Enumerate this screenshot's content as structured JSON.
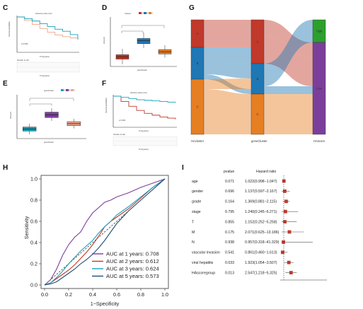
{
  "panels": {
    "C": "C",
    "D": "D",
    "E": "E",
    "F": "F",
    "G": "G",
    "H": "H",
    "I": "I"
  },
  "colors": {
    "red": "#c0392b",
    "blue": "#1f77b4",
    "orange": "#e67e22",
    "purple": "#7b3f9b",
    "teal": "#17a2b8",
    "salmon": "#f0a58a",
    "green": "#2ca02c",
    "gray": "#6d6d6d"
  },
  "chart_data": [
    {
      "panel": "C",
      "type": "line",
      "title": "HAscore probe (mtr)",
      "pvalue": "p=0.005",
      "table_title": "Number at risk",
      "series": [
        {
          "name": "high",
          "values": [
            1,
            0.9,
            0.78,
            0.66,
            0.55,
            0.47,
            0.42,
            0.38,
            0.32
          ]
        },
        {
          "name": "low",
          "values": [
            1,
            0.95,
            0.88,
            0.8,
            0.72,
            0.64,
            0.58,
            0.48,
            0.35
          ]
        }
      ],
      "x": [
        0,
        1,
        2,
        3,
        4,
        5,
        6,
        7,
        8
      ],
      "xlabel": "Time(years)",
      "ylabel": "Survival probability"
    },
    {
      "panel": "D",
      "type": "box",
      "legend_title": "clusters",
      "legend": [
        "A",
        "B",
        "C"
      ],
      "xlabel": "geneCluster",
      "ylabel": "HAscore",
      "categories": [
        "A",
        "B",
        "C"
      ],
      "series": [
        {
          "name": "A",
          "median": -0.9,
          "q1": -1.2,
          "q3": -0.6,
          "min": -1.9,
          "max": 0.2
        },
        {
          "name": "B",
          "median": 1.3,
          "q1": 0.9,
          "q3": 1.6,
          "min": 0.3,
          "max": 2.4
        },
        {
          "name": "C",
          "median": -0.2,
          "q1": -0.5,
          "q3": 0.1,
          "min": -1.0,
          "max": 0.7
        }
      ]
    },
    {
      "panel": "E",
      "type": "box",
      "legend_title": "geneCluster",
      "legend": [
        "A",
        "B",
        "C"
      ],
      "xlabel": "geneCluster",
      "ylabel": "HAscore",
      "categories": [
        "A",
        "B",
        "C"
      ],
      "series": [
        {
          "name": "A",
          "median": -0.8,
          "q1": -1.1,
          "q3": -0.5,
          "min": -1.6,
          "max": 0.0
        },
        {
          "name": "B",
          "median": 1.3,
          "q1": 0.9,
          "q3": 1.7,
          "min": 0.4,
          "max": 2.3
        },
        {
          "name": "C",
          "median": 0.0,
          "q1": -0.3,
          "q3": 0.3,
          "min": -0.7,
          "max": 0.7
        }
      ]
    },
    {
      "panel": "F",
      "type": "line",
      "title": "HAscore status (mtr)",
      "pvalue": "p<0.001",
      "table_title": "Number at risk",
      "series": [
        {
          "name": "high",
          "values": [
            1,
            0.82,
            0.66,
            0.52,
            0.42,
            0.36,
            0.3,
            0.26,
            0.22
          ]
        },
        {
          "name": "low",
          "values": [
            1,
            0.96,
            0.92,
            0.88,
            0.86,
            0.84,
            0.82,
            0.8,
            0.78
          ]
        }
      ],
      "x": [
        0,
        1,
        2,
        3,
        4,
        5,
        6,
        7,
        8
      ],
      "xlabel": "Time(years)",
      "ylabel": "Survival probability"
    },
    {
      "panel": "G",
      "type": "sankey",
      "axes": [
        "HAcluster",
        "geneCluster",
        "HAscore"
      ],
      "left": [
        "A",
        "B",
        "C"
      ],
      "middle": [
        "A",
        "B",
        "C"
      ],
      "right": [
        "High",
        "Low"
      ]
    },
    {
      "panel": "H",
      "type": "line",
      "xlabel": "1−Specificity",
      "ylabel": "Sensitivity",
      "xlim": [
        0,
        1
      ],
      "ylim": [
        0,
        1
      ],
      "ticks": [
        "0.0",
        "0.2",
        "0.4",
        "0.6",
        "0.8",
        "1.0"
      ],
      "series": [
        {
          "name": "AUC at 1 years: 0.708",
          "color": "#7b3f9b",
          "points": [
            [
              0,
              0
            ],
            [
              0.05,
              0.05
            ],
            [
              0.1,
              0.15
            ],
            [
              0.15,
              0.28
            ],
            [
              0.2,
              0.38
            ],
            [
              0.25,
              0.45
            ],
            [
              0.3,
              0.5
            ],
            [
              0.35,
              0.6
            ],
            [
              0.4,
              0.68
            ],
            [
              0.45,
              0.73
            ],
            [
              0.5,
              0.78
            ],
            [
              0.55,
              0.8
            ],
            [
              0.6,
              0.83
            ],
            [
              0.7,
              0.87
            ],
            [
              0.8,
              0.92
            ],
            [
              0.9,
              0.96
            ],
            [
              1,
              1
            ]
          ]
        },
        {
          "name": "AUC at 2 years: 0.612",
          "color": "#c0392b",
          "points": [
            [
              0,
              0
            ],
            [
              0.05,
              0.02
            ],
            [
              0.1,
              0.06
            ],
            [
              0.15,
              0.1
            ],
            [
              0.2,
              0.14
            ],
            [
              0.25,
              0.19
            ],
            [
              0.3,
              0.25
            ],
            [
              0.35,
              0.31
            ],
            [
              0.4,
              0.38
            ],
            [
              0.45,
              0.46
            ],
            [
              0.5,
              0.55
            ],
            [
              0.55,
              0.6
            ],
            [
              0.6,
              0.64
            ],
            [
              0.7,
              0.72
            ],
            [
              0.8,
              0.82
            ],
            [
              0.9,
              0.92
            ],
            [
              1,
              1
            ]
          ]
        },
        {
          "name": "AUC at 3 years: 0.624",
          "color": "#17a2b8",
          "points": [
            [
              0,
              0
            ],
            [
              0.05,
              0.02
            ],
            [
              0.1,
              0.07
            ],
            [
              0.15,
              0.13
            ],
            [
              0.2,
              0.2
            ],
            [
              0.25,
              0.26
            ],
            [
              0.3,
              0.32
            ],
            [
              0.35,
              0.37
            ],
            [
              0.4,
              0.42
            ],
            [
              0.45,
              0.49
            ],
            [
              0.5,
              0.55
            ],
            [
              0.55,
              0.6
            ],
            [
              0.6,
              0.66
            ],
            [
              0.7,
              0.74
            ],
            [
              0.8,
              0.83
            ],
            [
              0.9,
              0.92
            ],
            [
              1,
              1
            ]
          ]
        },
        {
          "name": "AUC at 5 years: 0.573",
          "color": "#1f4e79",
          "points": [
            [
              0,
              0
            ],
            [
              0.05,
              0.01
            ],
            [
              0.1,
              0.03
            ],
            [
              0.15,
              0.07
            ],
            [
              0.2,
              0.11
            ],
            [
              0.25,
              0.15
            ],
            [
              0.3,
              0.2
            ],
            [
              0.35,
              0.24
            ],
            [
              0.4,
              0.29
            ],
            [
              0.45,
              0.35
            ],
            [
              0.5,
              0.42
            ],
            [
              0.55,
              0.5
            ],
            [
              0.6,
              0.58
            ],
            [
              0.7,
              0.7
            ],
            [
              0.8,
              0.8
            ],
            [
              0.9,
              0.9
            ],
            [
              1,
              1
            ]
          ]
        }
      ]
    },
    {
      "panel": "I",
      "type": "forest",
      "col_pvalue": "pvalue",
      "col_hr": "Hazard ratio",
      "rows": [
        {
          "name": "age",
          "p": "0.071",
          "hr": "1.022(0.998−1.047)",
          "est": 1.022,
          "lo": 0.998,
          "hi": 1.047
        },
        {
          "name": "gender",
          "p": "0.696",
          "hr": "1.137(0.597−2.167)",
          "est": 1.137,
          "lo": 0.597,
          "hi": 2.167
        },
        {
          "name": "grade",
          "p": "0.164",
          "hr": "1.369(0.881−2.115)",
          "est": 1.369,
          "lo": 0.881,
          "hi": 2.115
        },
        {
          "name": "stage",
          "p": "0.795",
          "hr": "1.240(0.245−6.271)",
          "est": 1.24,
          "lo": 0.245,
          "hi": 6.271
        },
        {
          "name": "T",
          "p": "0.855",
          "hr": "1.152(0.252−5.258)",
          "est": 1.152,
          "lo": 0.252,
          "hi": 5.258
        },
        {
          "name": "M",
          "p": "0.175",
          "hr": "2.071(0.625−13.186)",
          "est": 2.071,
          "lo": 0.625,
          "hi": 13.186
        },
        {
          "name": "N",
          "p": "0.938",
          "hr": "0.957(0.318−41.329)",
          "est": 0.957,
          "lo": 0.318,
          "hi": 41.329
        },
        {
          "name": "vascular invasion",
          "p": "0.541",
          "hr": "0.861(0.460−1.613)",
          "est": 0.861,
          "lo": 0.46,
          "hi": 1.613
        },
        {
          "name": "viral hepatitis",
          "p": "0.033",
          "hr": "1.923(1.054−3.507)",
          "est": 1.923,
          "lo": 1.054,
          "hi": 3.507
        },
        {
          "name": "HAscoregroup",
          "p": "0.013",
          "hr": "2.547(1.218−5.325)",
          "est": 2.547,
          "lo": 1.218,
          "hi": 5.325
        }
      ]
    }
  ]
}
